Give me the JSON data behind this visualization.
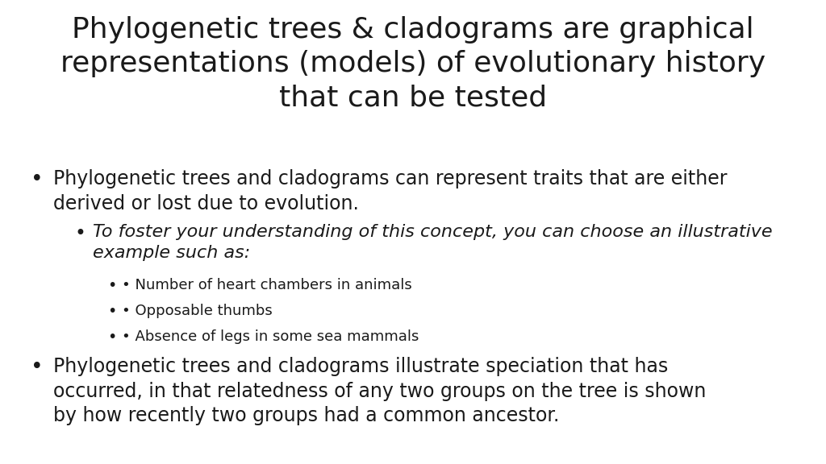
{
  "background_color": "#ffffff",
  "title_lines": [
    "Phylogenetic trees & cladograms are graphical",
    "representations (models) of evolutionary history",
    "that can be tested"
  ],
  "title_fontsize": 26,
  "title_color": "#1a1a1a",
  "bullet1_line1": "Phylogenetic trees and cladograms can represent traits that are either",
  "bullet1_line2": "derived or lost due to evolution.",
  "bullet1_fontsize": 17,
  "subbullet_italic_line1": "To foster your understanding of this concept, you can choose an illustrative",
  "subbullet_italic_line2": "example such as:",
  "subbullet_italic_fontsize": 16,
  "subbullet2_items": [
    "• Number of heart chambers in animals",
    "• Opposable thumbs",
    "• Absence of legs in some sea mammals"
  ],
  "subbullet2_fontsize": 13,
  "bullet2_line1": "Phylogenetic trees and cladograms illustrate speciation that has",
  "bullet2_line2": "occurred, in that relatedness of any two groups on the tree is shown",
  "bullet2_line3": "by how recently two groups had a common ancestor.",
  "bullet2_fontsize": 17,
  "text_color": "#1a1a1a"
}
